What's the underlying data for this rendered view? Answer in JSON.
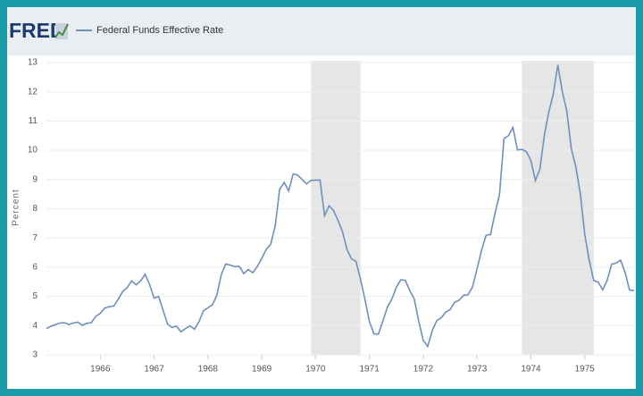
{
  "logo": "FRED",
  "chart_data": {
    "type": "line",
    "y_label": "Percent",
    "x": [
      1965,
      1965.083,
      1965.167,
      1965.25,
      1965.333,
      1965.417,
      1965.5,
      1965.583,
      1965.667,
      1965.75,
      1965.833,
      1965.917,
      1966,
      1966.083,
      1966.167,
      1966.25,
      1966.333,
      1966.417,
      1966.5,
      1966.583,
      1966.667,
      1966.75,
      1966.833,
      1966.917,
      1967,
      1967.083,
      1967.167,
      1967.25,
      1967.333,
      1967.417,
      1967.5,
      1967.583,
      1967.667,
      1967.75,
      1967.833,
      1967.917,
      1968,
      1968.083,
      1968.167,
      1968.25,
      1968.333,
      1968.417,
      1968.5,
      1968.583,
      1968.667,
      1968.75,
      1968.833,
      1968.917,
      1969,
      1969.083,
      1969.167,
      1969.25,
      1969.333,
      1969.417,
      1969.5,
      1969.583,
      1969.667,
      1969.75,
      1969.833,
      1969.917,
      1970,
      1970.083,
      1970.167,
      1970.25,
      1970.333,
      1970.417,
      1970.5,
      1970.583,
      1970.667,
      1970.75,
      1970.833,
      1970.917,
      1971,
      1971.083,
      1971.167,
      1971.25,
      1971.333,
      1971.417,
      1971.5,
      1971.583,
      1971.667,
      1971.75,
      1971.833,
      1971.917,
      1972,
      1972.083,
      1972.167,
      1972.25,
      1972.333,
      1972.417,
      1972.5,
      1972.583,
      1972.667,
      1972.75,
      1972.833,
      1972.917,
      1973,
      1973.083,
      1973.167,
      1973.25,
      1973.333,
      1973.417,
      1973.5,
      1973.583,
      1973.667,
      1973.75,
      1973.833,
      1973.917,
      1974,
      1974.083,
      1974.167,
      1974.25,
      1974.333,
      1974.417,
      1974.5,
      1974.583,
      1974.667,
      1974.75,
      1974.833,
      1974.917,
      1975,
      1975.083,
      1975.167,
      1975.25,
      1975.333,
      1975.417,
      1975.5,
      1975.583,
      1975.667,
      1975.75,
      1975.833,
      1975.917
    ],
    "series": [
      {
        "name": "Federal Funds Effective Rate",
        "color": "#6f8fbf",
        "values": [
          3.9,
          3.98,
          4.04,
          4.09,
          4.1,
          4.04,
          4.09,
          4.12,
          4.01,
          4.08,
          4.1,
          4.32,
          4.42,
          4.6,
          4.65,
          4.67,
          4.9,
          5.17,
          5.3,
          5.53,
          5.4,
          5.53,
          5.76,
          5.4,
          4.94,
          5.0,
          4.53,
          4.05,
          3.94,
          3.98,
          3.79,
          3.9,
          3.99,
          3.88,
          4.13,
          4.51,
          4.61,
          4.71,
          5.05,
          5.76,
          6.11,
          6.07,
          6.02,
          6.03,
          5.78,
          5.92,
          5.81,
          6.02,
          6.3,
          6.61,
          6.79,
          7.41,
          8.67,
          8.9,
          8.61,
          9.19,
          9.15,
          9.0,
          8.85,
          8.97,
          8.98,
          8.98,
          7.76,
          8.1,
          7.94,
          7.6,
          7.21,
          6.61,
          6.29,
          6.2,
          5.6,
          4.9,
          4.14,
          3.72,
          3.71,
          4.16,
          4.63,
          4.91,
          5.31,
          5.57,
          5.55,
          5.2,
          4.91,
          4.14,
          3.5,
          3.29,
          3.83,
          4.17,
          4.27,
          4.46,
          4.55,
          4.8,
          4.87,
          5.04,
          5.06,
          5.33,
          5.94,
          6.58,
          7.09,
          7.12,
          7.84,
          8.49,
          10.4,
          10.5,
          10.78,
          10.01,
          10.03,
          9.95,
          9.65,
          8.97,
          9.35,
          10.51,
          11.31,
          11.93,
          12.92,
          12.01,
          11.34,
          10.06,
          9.45,
          8.53,
          7.13,
          6.24,
          5.54,
          5.49,
          5.22,
          5.55,
          6.1,
          6.14,
          6.24,
          5.82,
          5.22,
          5.2
        ]
      }
    ],
    "recessions": [
      [
        1969.917,
        1970.833
      ],
      [
        1973.833,
        1975.167
      ]
    ],
    "recession_color": "#e6e6e6",
    "xlim": [
      1965,
      1975.95
    ],
    "xticks": [
      1966,
      1967,
      1968,
      1969,
      1970,
      1971,
      1972,
      1973,
      1974,
      1975
    ],
    "ylim": [
      3,
      13
    ],
    "yticks": [
      3,
      4,
      5,
      6,
      7,
      8,
      9,
      10,
      11,
      12,
      13
    ],
    "grid": true
  }
}
